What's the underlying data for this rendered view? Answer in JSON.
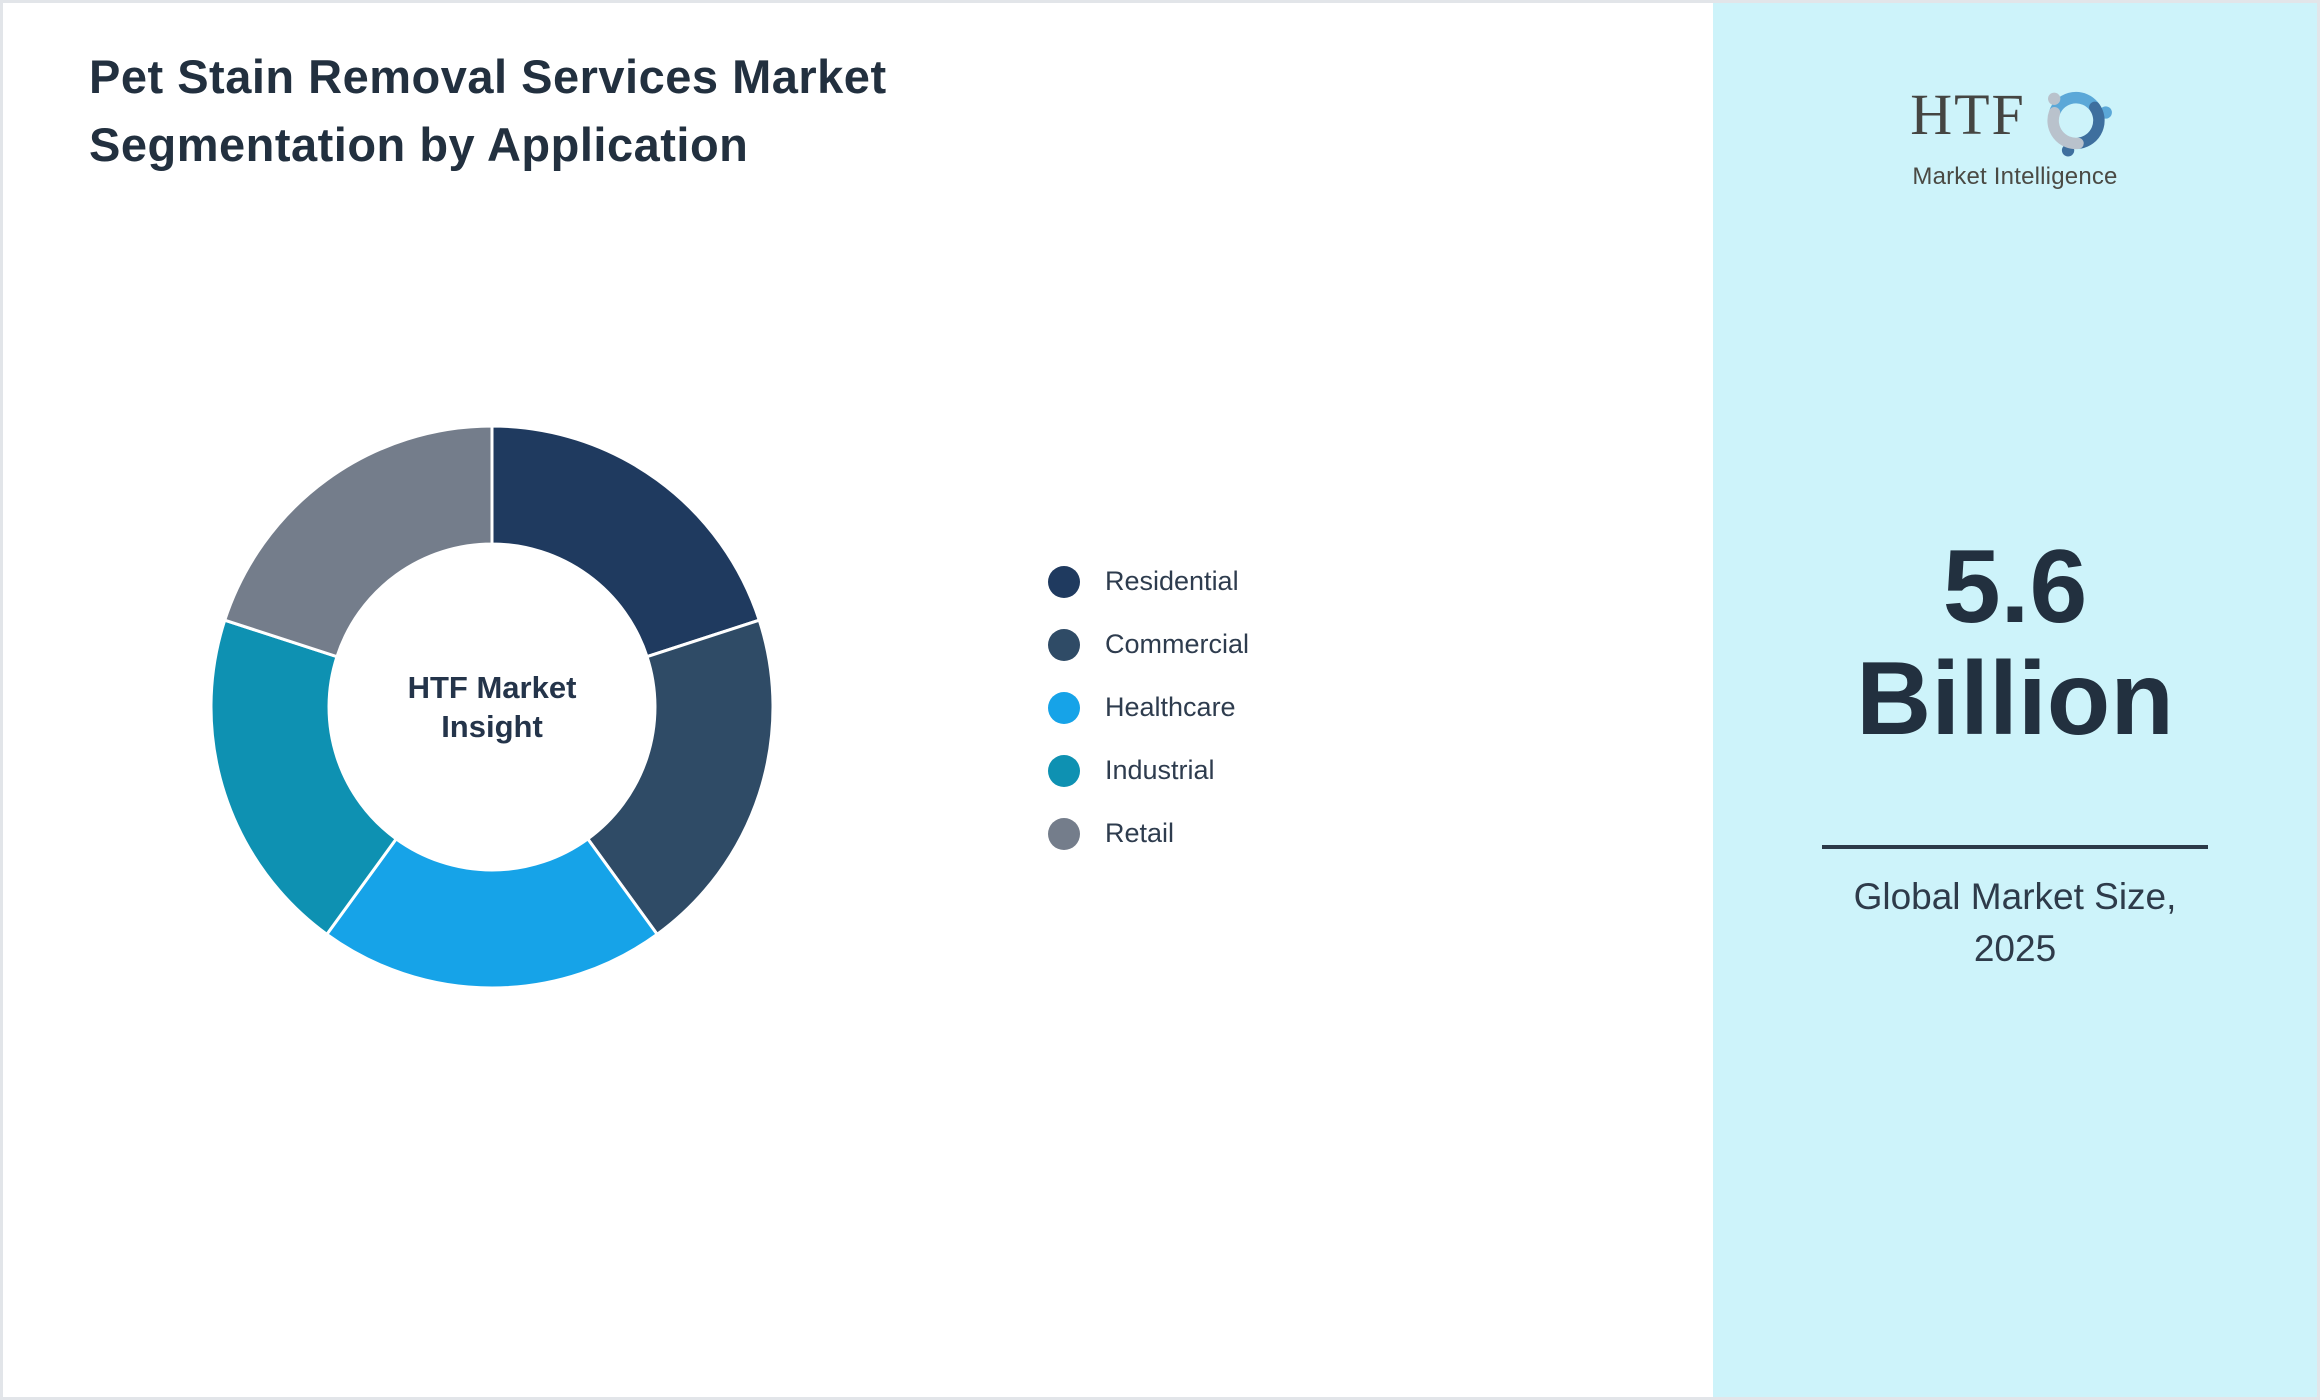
{
  "page": {
    "background": "#ffffff",
    "border_color": "#e2e5e9"
  },
  "title": {
    "line1": "Pet Stain Removal Services Market",
    "line2": "Segmentation by Application",
    "color": "#22303f"
  },
  "chart_data": {
    "type": "pie",
    "subtype": "donut",
    "title": "Pet Stain Removal Services Market Segmentation by Application",
    "center_label": {
      "line1": "HTF Market",
      "line2": "Insight"
    },
    "categories": [
      "Residential",
      "Commercial",
      "Healthcare",
      "Industrial",
      "Retail"
    ],
    "values": [
      20,
      20,
      20,
      20,
      20
    ],
    "unit": "% share (equal slices)",
    "colors": [
      "#1f3a5f",
      "#2f4b66",
      "#16a3e8",
      "#0e91b2",
      "#747d8b"
    ],
    "segment_border_color": "#ffffff",
    "start_angle_deg": 0,
    "direction": "clockwise",
    "inner_radius_ratio": 0.58,
    "legend_position": "right-middle"
  },
  "side_panel": {
    "background": "#cdf3fa",
    "logo": {
      "acronym": "HTF",
      "subtitle": "Market Intelligence",
      "text_color": "#454542",
      "emblem_colors": {
        "top_swoosh": "#5ba8d8",
        "left_swoosh": "#b9c2cc",
        "bottom_swoosh": "#3e6f9e"
      }
    },
    "stat": {
      "value_line1": "5.6",
      "value_line2": "Billion"
    },
    "divider_color": "#2b3948",
    "caption": {
      "line1": "Global Market Size,",
      "line2": "2025"
    }
  }
}
